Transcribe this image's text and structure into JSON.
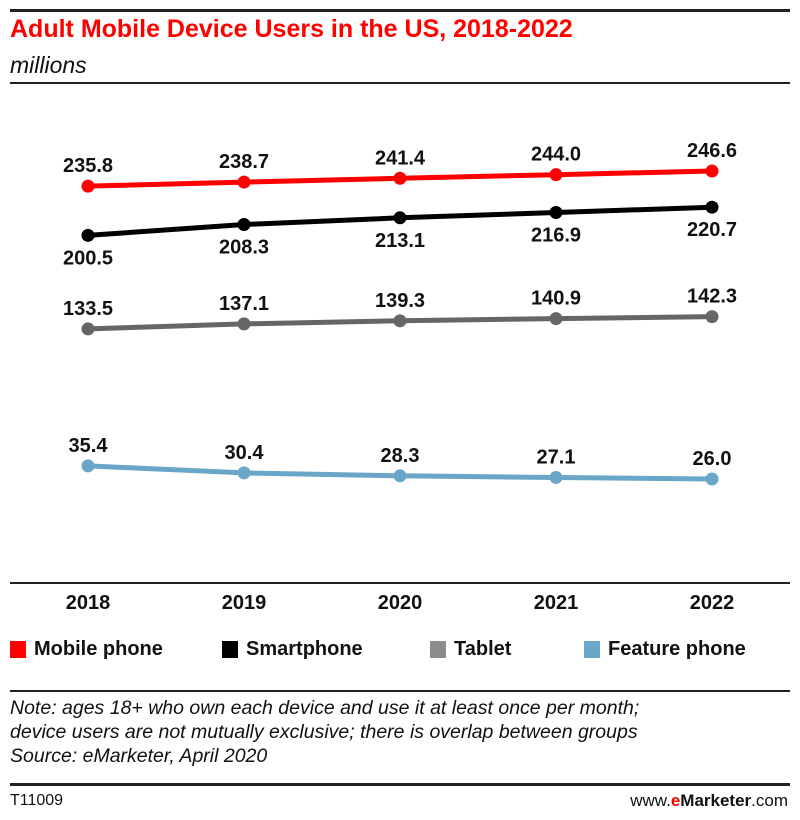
{
  "header": {
    "title": "Adult Mobile Device Users in the US, 2018-2022",
    "subtitle": "millions"
  },
  "chart_data": {
    "type": "line",
    "title": "Adult Mobile Device Users in the US, 2018-2022",
    "subtitle": "millions",
    "xlabel": "",
    "ylabel": "",
    "categories": [
      "2018",
      "2019",
      "2020",
      "2021",
      "2022"
    ],
    "series": [
      {
        "name": "Mobile phone",
        "color": "#ff0000",
        "values": [
          235.8,
          238.7,
          241.4,
          244.0,
          246.6
        ],
        "label_position": "above"
      },
      {
        "name": "Smartphone",
        "color": "#000000",
        "values": [
          200.5,
          208.3,
          213.1,
          216.9,
          220.7
        ],
        "label_position": "below"
      },
      {
        "name": "Tablet",
        "color": "#666666",
        "values": [
          133.5,
          137.1,
          139.3,
          140.9,
          142.3
        ],
        "label_position": "above"
      },
      {
        "name": "Feature phone",
        "color": "#6aa6c8",
        "values": [
          35.4,
          30.4,
          28.3,
          27.1,
          26.0
        ],
        "label_position": "above"
      }
    ],
    "legend_placement": "bottom",
    "grid": false,
    "y_axis_visible": false
  },
  "legend": [
    {
      "label": "Mobile phone",
      "color": "#ff0000"
    },
    {
      "label": "Smartphone",
      "color": "#000000"
    },
    {
      "label": "Tablet",
      "color": "#8c8c8c"
    },
    {
      "label": "Feature phone",
      "color": "#6aa6c8"
    }
  ],
  "footer": {
    "note_line1": "Note: ages 18+ who own each device and use it at least once per month;",
    "note_line2": "device users are not mutually exclusive; there is overlap between groups",
    "source": "Source: eMarketer, April 2020",
    "chart_id": "T11009",
    "site_prefix": "www.",
    "site_e": "e",
    "site_brand": "Marketer",
    "site_suffix": ".com"
  }
}
